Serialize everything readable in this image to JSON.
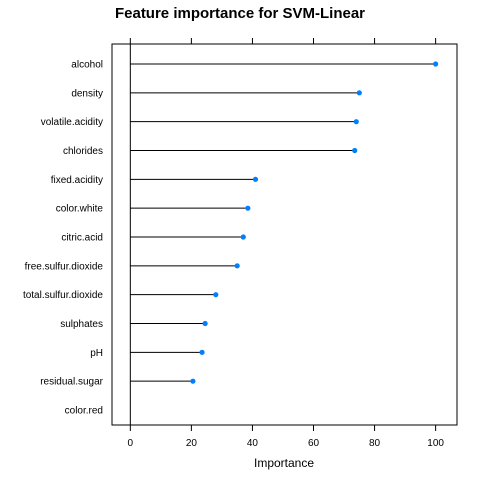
{
  "chart_data": {
    "type": "lollipop",
    "title": "Feature importance for SVM-Linear",
    "xlabel": "Importance",
    "ylabel": "",
    "xlim": [
      -6,
      107
    ],
    "xticks": [
      0,
      20,
      40,
      60,
      80,
      100
    ],
    "xtick_labels": [
      "0",
      "20",
      "40",
      "60",
      "80",
      "100"
    ],
    "categories": [
      "alcohol",
      "density",
      "volatile.acidity",
      "chlorides",
      "fixed.acidity",
      "color.white",
      "citric.acid",
      "free.sulfur.dioxide",
      "total.sulfur.dioxide",
      "sulphates",
      "pH",
      "residual.sugar",
      "color.red"
    ],
    "values": [
      100,
      75,
      74,
      73.5,
      41,
      38.5,
      37,
      35,
      28,
      24.5,
      23.5,
      20.5,
      0
    ],
    "baseline": 0,
    "grid": false,
    "legend": "none",
    "colors": {
      "point": "#0080ff",
      "stem": "#000000",
      "axis": "#000000"
    }
  }
}
